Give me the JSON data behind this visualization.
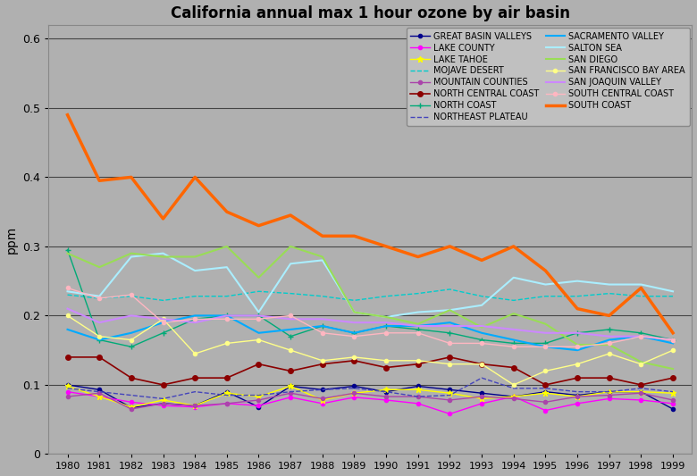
{
  "title": "California annual max 1 hour ozone by air basin",
  "ylabel": "ppm",
  "years": [
    1980,
    1981,
    1982,
    1983,
    1984,
    1985,
    1986,
    1987,
    1988,
    1989,
    1990,
    1991,
    1992,
    1993,
    1994,
    1995,
    1996,
    1997,
    1998,
    1999
  ],
  "ylim": [
    0,
    0.62
  ],
  "yticks": [
    0,
    0.1,
    0.2,
    0.3,
    0.4,
    0.5,
    0.6
  ],
  "bg_color": "#b0b0b0",
  "legend_order": [
    "GREAT BASIN VALLEYS",
    "LAKE COUNTY",
    "LAKE TAHOE",
    "MOJAVE DESERT",
    "MOUNTAIN COUNTIES",
    "NORTH CENTRAL COAST",
    "NORTH COAST",
    "NORTHEAST PLATEAU",
    "SACRAMENTO VALLEY",
    "SALTON SEA",
    "SAN DIEGO",
    "SAN FRANCISCO BAY AREA",
    "SAN JOAQUIN VALLEY",
    "SOUTH CENTRAL COAST",
    "SOUTH COAST"
  ],
  "series": {
    "GREAT BASIN VALLEYS": {
      "color": "#00008B",
      "marker": "o",
      "markersize": 3,
      "linewidth": 1.0,
      "values": [
        0.1,
        0.093,
        0.067,
        0.073,
        0.07,
        0.09,
        0.068,
        0.098,
        0.093,
        0.098,
        0.09,
        0.098,
        0.093,
        0.088,
        0.083,
        0.09,
        0.085,
        0.09,
        0.09,
        0.065
      ]
    },
    "LAKE COUNTY": {
      "color": "#FF00FF",
      "marker": "o",
      "markersize": 3,
      "linewidth": 1.0,
      "values": [
        0.09,
        0.083,
        0.075,
        0.07,
        0.068,
        0.073,
        0.07,
        0.082,
        0.073,
        0.082,
        0.078,
        0.073,
        0.058,
        0.073,
        0.083,
        0.063,
        0.073,
        0.08,
        0.078,
        0.073
      ]
    },
    "LAKE TAHOE": {
      "color": "#FFFF00",
      "marker": "*",
      "markersize": 5,
      "linewidth": 1.0,
      "values": [
        0.098,
        0.083,
        0.068,
        0.078,
        0.07,
        0.088,
        0.083,
        0.098,
        0.078,
        0.088,
        0.093,
        0.093,
        0.088,
        0.08,
        0.083,
        0.088,
        0.083,
        0.09,
        0.09,
        0.088
      ]
    },
    "MOJAVE DESERT": {
      "color": "#00CCCC",
      "marker": "None",
      "markersize": 2,
      "linewidth": 1.0,
      "linestyle": "--",
      "values": [
        0.23,
        0.225,
        0.228,
        0.222,
        0.228,
        0.228,
        0.235,
        0.232,
        0.228,
        0.222,
        0.228,
        0.232,
        0.238,
        0.228,
        0.222,
        0.228,
        0.228,
        0.232,
        0.228,
        0.228
      ]
    },
    "MOUNTAIN COUNTIES": {
      "color": "#aa44aa",
      "marker": "o",
      "markersize": 3,
      "linewidth": 1.0,
      "values": [
        0.083,
        0.088,
        0.065,
        0.073,
        0.07,
        0.073,
        0.078,
        0.088,
        0.08,
        0.088,
        0.083,
        0.083,
        0.078,
        0.083,
        0.08,
        0.075,
        0.083,
        0.085,
        0.088,
        0.078
      ]
    },
    "NORTH CENTRAL COAST": {
      "color": "#8B0000",
      "marker": "o",
      "markersize": 4,
      "linewidth": 1.2,
      "values": [
        0.14,
        0.14,
        0.11,
        0.1,
        0.11,
        0.11,
        0.13,
        0.12,
        0.13,
        0.135,
        0.125,
        0.13,
        0.14,
        0.13,
        0.125,
        0.1,
        0.11,
        0.11,
        0.1,
        0.11
      ]
    },
    "NORTH COAST": {
      "color": "#00aa77",
      "marker": "+",
      "markersize": 5,
      "linewidth": 1.0,
      "values": [
        0.295,
        0.165,
        0.155,
        0.175,
        0.195,
        0.2,
        0.2,
        0.17,
        0.185,
        0.175,
        0.185,
        0.18,
        0.175,
        0.165,
        0.16,
        0.16,
        0.175,
        0.18,
        0.175,
        0.165
      ]
    },
    "NORTHEAST PLATEAU": {
      "color": "#4444BB",
      "marker": "None",
      "markersize": 2,
      "linewidth": 1.0,
      "linestyle": "--",
      "values": [
        0.095,
        0.09,
        0.085,
        0.08,
        0.09,
        0.085,
        0.085,
        0.09,
        0.093,
        0.095,
        0.09,
        0.083,
        0.085,
        0.11,
        0.095,
        0.095,
        0.09,
        0.09,
        0.095,
        0.09
      ]
    },
    "SACRAMENTO VALLEY": {
      "color": "#00AAFF",
      "marker": "None",
      "markersize": 2,
      "linewidth": 1.5,
      "values": [
        0.18,
        0.165,
        0.175,
        0.19,
        0.2,
        0.2,
        0.175,
        0.18,
        0.185,
        0.175,
        0.185,
        0.185,
        0.19,
        0.175,
        0.165,
        0.155,
        0.15,
        0.165,
        0.17,
        0.16
      ]
    },
    "SALTON SEA": {
      "color": "#aaeeff",
      "marker": "None",
      "markersize": 2,
      "linewidth": 1.5,
      "values": [
        0.235,
        0.228,
        0.285,
        0.29,
        0.265,
        0.27,
        0.205,
        0.275,
        0.28,
        0.205,
        0.198,
        0.205,
        0.208,
        0.215,
        0.255,
        0.245,
        0.25,
        0.245,
        0.245,
        0.235
      ]
    },
    "SAN DIEGO": {
      "color": "#99dd55",
      "marker": "None",
      "markersize": 2,
      "linewidth": 1.5,
      "values": [
        0.29,
        0.27,
        0.29,
        0.285,
        0.285,
        0.3,
        0.255,
        0.3,
        0.285,
        0.205,
        0.198,
        0.188,
        0.208,
        0.183,
        0.203,
        0.188,
        0.158,
        0.158,
        0.133,
        0.123
      ]
    },
    "SAN FRANCISCO BAY AREA": {
      "color": "#FFFF88",
      "marker": "o",
      "markersize": 3,
      "linewidth": 1.0,
      "values": [
        0.2,
        0.17,
        0.165,
        0.195,
        0.145,
        0.16,
        0.165,
        0.15,
        0.135,
        0.14,
        0.135,
        0.135,
        0.13,
        0.13,
        0.1,
        0.12,
        0.13,
        0.145,
        0.13,
        0.15
      ]
    },
    "SAN JOAQUIN VALLEY": {
      "color": "#cc88ff",
      "marker": "None",
      "markersize": 2,
      "linewidth": 1.5,
      "values": [
        0.21,
        0.19,
        0.2,
        0.195,
        0.19,
        0.2,
        0.2,
        0.195,
        0.195,
        0.19,
        0.19,
        0.185,
        0.185,
        0.185,
        0.18,
        0.175,
        0.175,
        0.17,
        0.17,
        0.165
      ]
    },
    "SOUTH CENTRAL COAST": {
      "color": "#FFB6C1",
      "marker": "o",
      "markersize": 3,
      "linewidth": 1.0,
      "values": [
        0.24,
        0.225,
        0.23,
        0.19,
        0.195,
        0.195,
        0.195,
        0.2,
        0.175,
        0.17,
        0.175,
        0.175,
        0.16,
        0.16,
        0.155,
        0.155,
        0.155,
        0.16,
        0.17,
        0.165
      ]
    },
    "SOUTH COAST": {
      "color": "#FF6600",
      "marker": "None",
      "markersize": 2,
      "linewidth": 2.5,
      "values": [
        0.49,
        0.395,
        0.4,
        0.34,
        0.4,
        0.35,
        0.33,
        0.345,
        0.315,
        0.315,
        0.3,
        0.285,
        0.3,
        0.28,
        0.3,
        0.265,
        0.21,
        0.2,
        0.24,
        0.175
      ]
    }
  }
}
